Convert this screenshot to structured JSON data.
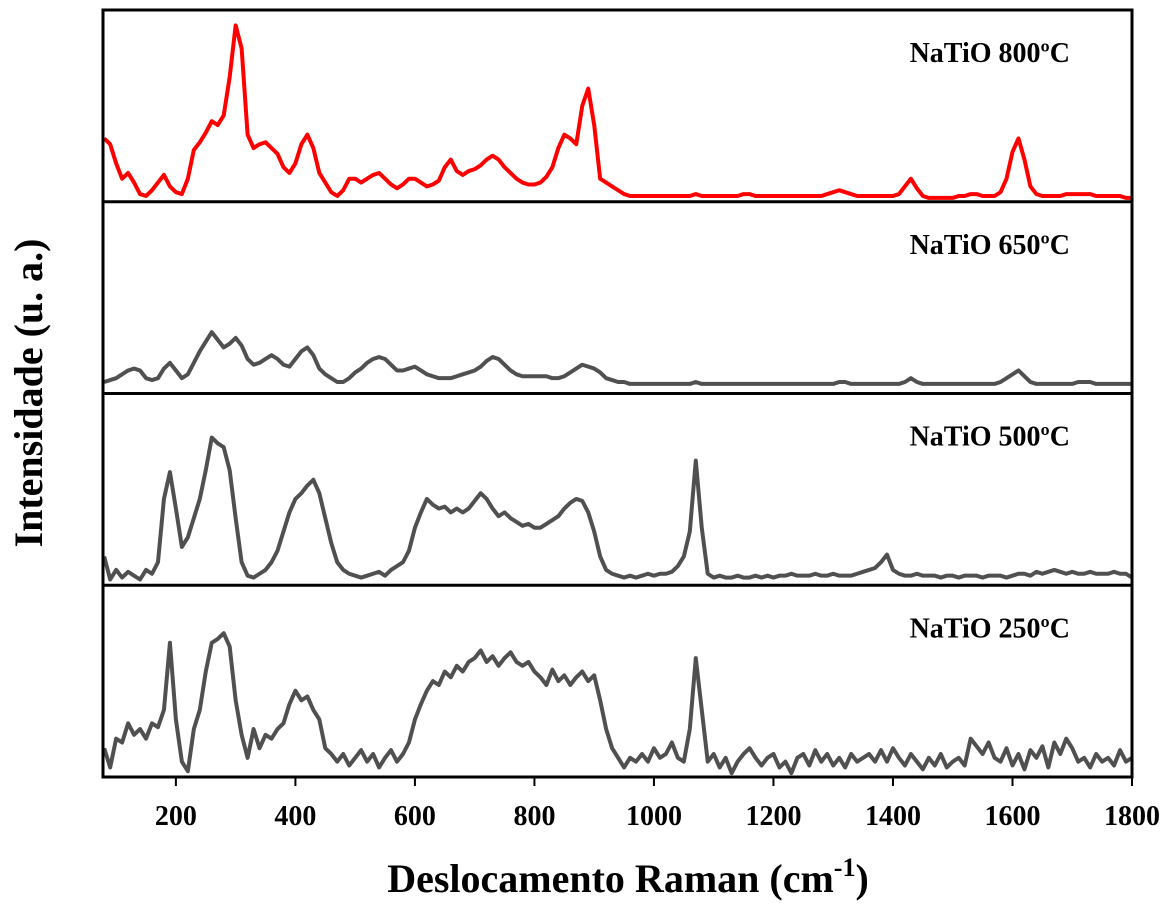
{
  "chart_data": {
    "type": "line",
    "xlabel": {
      "text": "Deslocamento Raman (cm",
      "sup": "-1",
      "end": ")"
    },
    "ylabel": "Intensidade (u. a.)",
    "xlim": [
      78,
      1800
    ],
    "xticks": [
      200,
      400,
      600,
      800,
      1000,
      1200,
      1400,
      1600,
      1800
    ],
    "ylim": [
      0,
      1
    ],
    "x": [
      80,
      90,
      100,
      110,
      120,
      130,
      140,
      150,
      160,
      170,
      180,
      190,
      200,
      210,
      220,
      230,
      240,
      250,
      260,
      270,
      280,
      290,
      300,
      310,
      320,
      330,
      340,
      350,
      360,
      370,
      380,
      390,
      400,
      410,
      420,
      430,
      440,
      450,
      460,
      470,
      480,
      490,
      500,
      510,
      520,
      530,
      540,
      550,
      560,
      570,
      580,
      590,
      600,
      610,
      620,
      630,
      640,
      650,
      660,
      670,
      680,
      690,
      700,
      710,
      720,
      730,
      740,
      750,
      760,
      770,
      780,
      790,
      800,
      810,
      820,
      830,
      840,
      850,
      860,
      870,
      880,
      890,
      900,
      910,
      920,
      930,
      940,
      950,
      960,
      970,
      980,
      990,
      1000,
      1010,
      1020,
      1030,
      1040,
      1050,
      1060,
      1070,
      1080,
      1090,
      1100,
      1110,
      1120,
      1130,
      1140,
      1150,
      1160,
      1170,
      1180,
      1190,
      1200,
      1210,
      1220,
      1230,
      1240,
      1250,
      1260,
      1270,
      1280,
      1290,
      1300,
      1310,
      1320,
      1330,
      1340,
      1350,
      1360,
      1370,
      1380,
      1390,
      1400,
      1410,
      1420,
      1430,
      1440,
      1450,
      1460,
      1470,
      1480,
      1490,
      1500,
      1510,
      1520,
      1530,
      1540,
      1550,
      1560,
      1570,
      1580,
      1590,
      1600,
      1610,
      1620,
      1630,
      1640,
      1650,
      1660,
      1670,
      1680,
      1690,
      1700,
      1710,
      1720,
      1730,
      1740,
      1750,
      1760,
      1770,
      1780,
      1790,
      1800
    ],
    "series": [
      {
        "name": "NaTiO 800ºC",
        "color": "#ff0000",
        "values": [
          0.33,
          0.3,
          0.2,
          0.12,
          0.15,
          0.1,
          0.04,
          0.03,
          0.06,
          0.1,
          0.14,
          0.08,
          0.05,
          0.04,
          0.12,
          0.27,
          0.31,
          0.36,
          0.42,
          0.4,
          0.45,
          0.65,
          0.92,
          0.8,
          0.35,
          0.28,
          0.3,
          0.31,
          0.28,
          0.25,
          0.18,
          0.15,
          0.2,
          0.3,
          0.35,
          0.28,
          0.15,
          0.1,
          0.05,
          0.03,
          0.06,
          0.12,
          0.12,
          0.1,
          0.12,
          0.14,
          0.15,
          0.12,
          0.09,
          0.07,
          0.09,
          0.12,
          0.12,
          0.1,
          0.08,
          0.09,
          0.11,
          0.18,
          0.22,
          0.16,
          0.14,
          0.16,
          0.17,
          0.19,
          0.22,
          0.24,
          0.22,
          0.18,
          0.15,
          0.12,
          0.1,
          0.09,
          0.09,
          0.1,
          0.13,
          0.18,
          0.28,
          0.35,
          0.33,
          0.3,
          0.5,
          0.59,
          0.4,
          0.12,
          0.1,
          0.08,
          0.06,
          0.04,
          0.03,
          0.03,
          0.03,
          0.03,
          0.03,
          0.03,
          0.03,
          0.03,
          0.03,
          0.03,
          0.03,
          0.04,
          0.03,
          0.03,
          0.03,
          0.03,
          0.03,
          0.03,
          0.03,
          0.04,
          0.04,
          0.03,
          0.03,
          0.03,
          0.03,
          0.03,
          0.03,
          0.03,
          0.03,
          0.03,
          0.03,
          0.03,
          0.03,
          0.04,
          0.05,
          0.06,
          0.05,
          0.04,
          0.03,
          0.03,
          0.03,
          0.03,
          0.03,
          0.03,
          0.03,
          0.04,
          0.08,
          0.12,
          0.07,
          0.03,
          0.02,
          0.02,
          0.02,
          0.02,
          0.02,
          0.03,
          0.03,
          0.04,
          0.04,
          0.03,
          0.03,
          0.03,
          0.05,
          0.12,
          0.26,
          0.33,
          0.22,
          0.08,
          0.04,
          0.03,
          0.03,
          0.03,
          0.03,
          0.04,
          0.04,
          0.04,
          0.04,
          0.04,
          0.03,
          0.03,
          0.03,
          0.03,
          0.03,
          0.02,
          0.02
        ]
      },
      {
        "name": "NaTiO 650ºC",
        "color": "#505050",
        "values": [
          0.06,
          0.07,
          0.08,
          0.1,
          0.12,
          0.13,
          0.12,
          0.08,
          0.07,
          0.08,
          0.13,
          0.16,
          0.12,
          0.08,
          0.1,
          0.16,
          0.22,
          0.27,
          0.32,
          0.28,
          0.24,
          0.26,
          0.29,
          0.25,
          0.18,
          0.15,
          0.16,
          0.18,
          0.2,
          0.18,
          0.15,
          0.14,
          0.18,
          0.22,
          0.24,
          0.2,
          0.13,
          0.1,
          0.08,
          0.06,
          0.06,
          0.08,
          0.11,
          0.13,
          0.16,
          0.18,
          0.19,
          0.18,
          0.15,
          0.12,
          0.12,
          0.13,
          0.14,
          0.12,
          0.1,
          0.09,
          0.08,
          0.08,
          0.08,
          0.09,
          0.1,
          0.11,
          0.12,
          0.14,
          0.17,
          0.19,
          0.18,
          0.15,
          0.12,
          0.1,
          0.09,
          0.09,
          0.09,
          0.09,
          0.09,
          0.08,
          0.08,
          0.09,
          0.11,
          0.13,
          0.15,
          0.14,
          0.13,
          0.11,
          0.08,
          0.07,
          0.06,
          0.06,
          0.05,
          0.05,
          0.05,
          0.05,
          0.05,
          0.05,
          0.05,
          0.05,
          0.05,
          0.05,
          0.05,
          0.06,
          0.05,
          0.05,
          0.05,
          0.05,
          0.05,
          0.05,
          0.05,
          0.05,
          0.05,
          0.05,
          0.05,
          0.05,
          0.05,
          0.05,
          0.05,
          0.05,
          0.05,
          0.05,
          0.05,
          0.05,
          0.05,
          0.05,
          0.05,
          0.06,
          0.06,
          0.05,
          0.05,
          0.05,
          0.05,
          0.05,
          0.05,
          0.05,
          0.05,
          0.05,
          0.06,
          0.08,
          0.06,
          0.05,
          0.05,
          0.05,
          0.05,
          0.05,
          0.05,
          0.05,
          0.05,
          0.05,
          0.05,
          0.05,
          0.05,
          0.05,
          0.06,
          0.08,
          0.1,
          0.12,
          0.09,
          0.06,
          0.05,
          0.05,
          0.05,
          0.05,
          0.05,
          0.05,
          0.05,
          0.06,
          0.06,
          0.06,
          0.05,
          0.05,
          0.05,
          0.05,
          0.05,
          0.05,
          0.05
        ]
      },
      {
        "name": "NaTiO 500ºC",
        "color": "#505050",
        "values": [
          0.15,
          0.03,
          0.08,
          0.04,
          0.07,
          0.05,
          0.03,
          0.08,
          0.06,
          0.12,
          0.45,
          0.59,
          0.4,
          0.2,
          0.25,
          0.35,
          0.45,
          0.6,
          0.77,
          0.74,
          0.72,
          0.6,
          0.35,
          0.12,
          0.05,
          0.04,
          0.06,
          0.08,
          0.12,
          0.18,
          0.28,
          0.38,
          0.45,
          0.48,
          0.52,
          0.55,
          0.48,
          0.35,
          0.22,
          0.12,
          0.08,
          0.06,
          0.05,
          0.04,
          0.05,
          0.06,
          0.07,
          0.05,
          0.08,
          0.1,
          0.12,
          0.18,
          0.3,
          0.38,
          0.45,
          0.42,
          0.4,
          0.41,
          0.38,
          0.4,
          0.38,
          0.4,
          0.44,
          0.48,
          0.45,
          0.4,
          0.36,
          0.38,
          0.35,
          0.33,
          0.31,
          0.32,
          0.3,
          0.3,
          0.32,
          0.34,
          0.36,
          0.4,
          0.43,
          0.45,
          0.44,
          0.38,
          0.28,
          0.15,
          0.08,
          0.06,
          0.05,
          0.04,
          0.05,
          0.04,
          0.05,
          0.06,
          0.05,
          0.06,
          0.06,
          0.07,
          0.1,
          0.15,
          0.28,
          0.65,
          0.3,
          0.06,
          0.04,
          0.05,
          0.04,
          0.04,
          0.05,
          0.04,
          0.04,
          0.05,
          0.04,
          0.05,
          0.04,
          0.05,
          0.05,
          0.06,
          0.05,
          0.05,
          0.05,
          0.06,
          0.05,
          0.05,
          0.06,
          0.05,
          0.05,
          0.05,
          0.06,
          0.07,
          0.08,
          0.09,
          0.12,
          0.16,
          0.08,
          0.06,
          0.05,
          0.05,
          0.06,
          0.05,
          0.05,
          0.05,
          0.04,
          0.05,
          0.05,
          0.04,
          0.05,
          0.05,
          0.05,
          0.04,
          0.05,
          0.05,
          0.05,
          0.04,
          0.05,
          0.06,
          0.06,
          0.05,
          0.07,
          0.06,
          0.07,
          0.08,
          0.07,
          0.06,
          0.07,
          0.06,
          0.06,
          0.07,
          0.06,
          0.06,
          0.06,
          0.07,
          0.06,
          0.06,
          0.04
        ]
      },
      {
        "name": "NaTiO 250ºC",
        "color": "#505050",
        "values": [
          0.15,
          0.05,
          0.2,
          0.18,
          0.28,
          0.22,
          0.25,
          0.2,
          0.28,
          0.26,
          0.35,
          0.7,
          0.3,
          0.08,
          0.03,
          0.25,
          0.35,
          0.55,
          0.7,
          0.72,
          0.75,
          0.68,
          0.4,
          0.22,
          0.1,
          0.25,
          0.15,
          0.22,
          0.2,
          0.25,
          0.28,
          0.38,
          0.45,
          0.4,
          0.42,
          0.35,
          0.3,
          0.15,
          0.12,
          0.08,
          0.12,
          0.06,
          0.1,
          0.14,
          0.08,
          0.12,
          0.05,
          0.1,
          0.14,
          0.08,
          0.12,
          0.18,
          0.3,
          0.38,
          0.45,
          0.5,
          0.48,
          0.55,
          0.52,
          0.58,
          0.55,
          0.6,
          0.62,
          0.66,
          0.6,
          0.63,
          0.58,
          0.62,
          0.65,
          0.6,
          0.58,
          0.6,
          0.55,
          0.52,
          0.48,
          0.56,
          0.5,
          0.53,
          0.48,
          0.52,
          0.55,
          0.5,
          0.53,
          0.4,
          0.25,
          0.15,
          0.1,
          0.05,
          0.1,
          0.08,
          0.12,
          0.08,
          0.15,
          0.1,
          0.12,
          0.18,
          0.1,
          0.08,
          0.25,
          0.62,
          0.35,
          0.08,
          0.12,
          0.05,
          0.1,
          0.02,
          0.08,
          0.12,
          0.15,
          0.1,
          0.06,
          0.1,
          0.12,
          0.05,
          0.08,
          0.02,
          0.1,
          0.12,
          0.06,
          0.14,
          0.08,
          0.12,
          0.06,
          0.1,
          0.05,
          0.12,
          0.08,
          0.1,
          0.12,
          0.08,
          0.14,
          0.08,
          0.15,
          0.1,
          0.06,
          0.12,
          0.08,
          0.04,
          0.1,
          0.06,
          0.12,
          0.05,
          0.08,
          0.1,
          0.06,
          0.2,
          0.16,
          0.12,
          0.18,
          0.1,
          0.08,
          0.15,
          0.06,
          0.12,
          0.04,
          0.14,
          0.1,
          0.16,
          0.05,
          0.18,
          0.12,
          0.2,
          0.15,
          0.08,
          0.1,
          0.05,
          0.12,
          0.08,
          0.1,
          0.06,
          0.14,
          0.08,
          0.1
        ]
      }
    ]
  }
}
